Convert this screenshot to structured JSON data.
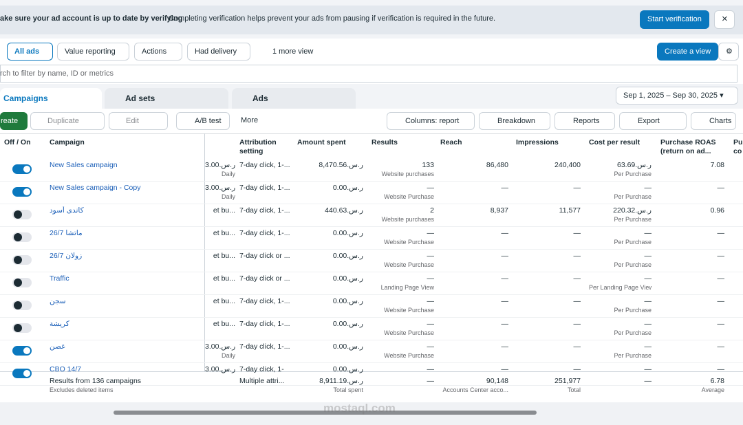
{
  "banner": {
    "title": "ake sure your ad account is up to date by verifying",
    "text": "Completing verification helps prevent your ads from pausing if verification is required in the future.",
    "button": "Start verification"
  },
  "views": {
    "tabs": [
      "All ads",
      "Value reporting",
      "Actions",
      "Had delivery",
      "1 more view"
    ],
    "create": "Create a view"
  },
  "search": {
    "placeholder": "rch to filter by name, ID or metrics"
  },
  "levels": {
    "tabs": [
      "Campaigns",
      "Ad sets",
      "Ads"
    ],
    "date_range": "Sep 1, 2025 – Sep 30, 2025"
  },
  "toolbar": {
    "create": "reate",
    "duplicate": "Duplicate",
    "edit": "Edit",
    "ab_test": "A/B test",
    "more": "More",
    "columns": "Columns: report",
    "breakdown": "Breakdown",
    "reports": "Reports",
    "export": "Export",
    "charts": "Charts"
  },
  "table": {
    "headers": {
      "toggle": "Off / On",
      "name": "Campaign",
      "attribution": "Attribution setting",
      "amount": "Amount spent",
      "results": "Results",
      "reach": "Reach",
      "impressions": "Impressions",
      "cost": "Cost per result",
      "roas": "Purchase ROAS (return on ad...",
      "extra": "Pu co"
    },
    "rows": [
      {
        "on": true,
        "name": "New Sales campaign",
        "budget": "ر.س.3.00",
        "budget_sub": "Daily",
        "attribution": "7-day click, 1-...",
        "amount": "ر.س.8,470.56",
        "results": "133",
        "results_sub": "Website purchases",
        "reach": "86,480",
        "impressions": "240,400",
        "cost": "ر.س.63.69",
        "cost_sub": "Per Purchase",
        "roas": "7.08"
      },
      {
        "on": true,
        "name": "New Sales campaign - Copy",
        "budget": "ر.س.3.00",
        "budget_sub": "Daily",
        "attribution": "7-day click, 1-...",
        "amount": "ر.س.0.00",
        "results": "—",
        "results_sub": "Website Purchase",
        "reach": "—",
        "impressions": "—",
        "cost": "—",
        "cost_sub": "Per Purchase",
        "roas": "—"
      },
      {
        "on": false,
        "name": "كاندى أسود",
        "budget": "et bu...",
        "attribution": "7-day click, 1-...",
        "amount": "ر.س.440.63",
        "results": "2",
        "results_sub": "Website purchases",
        "reach": "8,937",
        "impressions": "11,577",
        "cost": "ر.س.220.32",
        "cost_sub": "Per Purchase",
        "roas": "0.96"
      },
      {
        "on": false,
        "name": "ماتشا 26/7",
        "budget": "et bu...",
        "attribution": "7-day click, 1-...",
        "amount": "ر.س.0.00",
        "results": "—",
        "results_sub": "Website Purchase",
        "reach": "—",
        "impressions": "—",
        "cost": "—",
        "cost_sub": "Per Purchase",
        "roas": "—"
      },
      {
        "on": false,
        "name": "زولان 26/7",
        "budget": "et bu...",
        "attribution": "7-day click or ...",
        "amount": "ر.س.0.00",
        "results": "—",
        "results_sub": "Website Purchase",
        "reach": "—",
        "impressions": "—",
        "cost": "—",
        "cost_sub": "Per Purchase",
        "roas": "—"
      },
      {
        "on": false,
        "name": "Traffic",
        "budget": "et bu...",
        "attribution": "7-day click or ...",
        "amount": "ر.س.0.00",
        "results": "—",
        "results_sub": "Landing Page View",
        "reach": "—",
        "impressions": "—",
        "cost": "—",
        "cost_sub": "Per Landing Page View",
        "roas": "—"
      },
      {
        "on": false,
        "name": "سجن",
        "budget": "et bu...",
        "attribution": "7-day click, 1-...",
        "amount": "ر.س.0.00",
        "results": "—",
        "results_sub": "Website Purchase",
        "reach": "—",
        "impressions": "—",
        "cost": "—",
        "cost_sub": "Per Purchase",
        "roas": "—"
      },
      {
        "on": false,
        "name": "كريشة",
        "budget": "et bu...",
        "attribution": "7-day click, 1-...",
        "amount": "ر.س.0.00",
        "results": "—",
        "results_sub": "Website Purchase",
        "reach": "—",
        "impressions": "—",
        "cost": "—",
        "cost_sub": "Per Purchase",
        "roas": "—"
      },
      {
        "on": true,
        "name": "غصن",
        "budget": "ر.س.3.00",
        "budget_sub": "Daily",
        "attribution": "7-day click, 1-...",
        "amount": "ر.س.0.00",
        "results": "—",
        "results_sub": "Website Purchase",
        "reach": "—",
        "impressions": "—",
        "cost": "—",
        "cost_sub": "Per Purchase",
        "roas": "—"
      },
      {
        "on": true,
        "name": "CBO 14/7",
        "budget": "ر.س.3.00",
        "attribution": "7-day click, 1-",
        "amount": "ر.س.0.00",
        "results": "—",
        "reach": "—",
        "impressions": "—",
        "cost": "—",
        "roas": "—"
      }
    ],
    "footer": {
      "name": "Results from 136 campaigns",
      "name_sub": "Excludes deleted items",
      "attribution": "Multiple attri...",
      "amount": "ر.س.8,911.19",
      "amount_sub": "Total spent",
      "results": "—",
      "reach": "90,148",
      "reach_sub": "Accounts Center acco...",
      "impressions": "251,977",
      "impressions_sub": "Total",
      "cost": "—",
      "roas": "6.78",
      "roas_sub": "Average"
    }
  },
  "watermark": "mostaql.com"
}
